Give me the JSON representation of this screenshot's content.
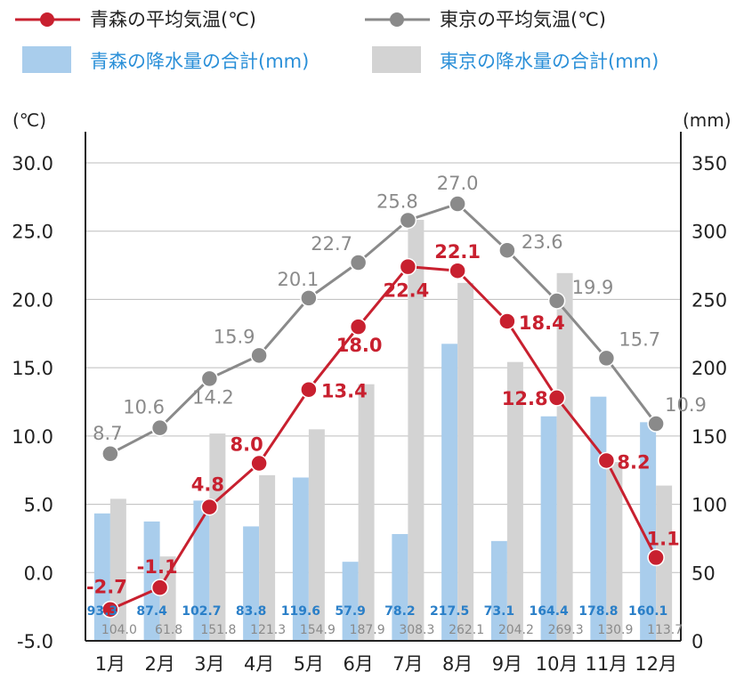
{
  "chart_data": {
    "type": "bar",
    "categories": [
      "1月",
      "2月",
      "3月",
      "4月",
      "5月",
      "6月",
      "7月",
      "8月",
      "9月",
      "10月",
      "11月",
      "12月"
    ],
    "left_axis": {
      "unit_label": "(℃)",
      "ylim": [
        -5.0,
        30.0
      ],
      "ticks": [
        "30.0",
        "25.0",
        "20.0",
        "15.0",
        "10.0",
        "5.0",
        "0.0",
        "-5.0"
      ]
    },
    "right_axis": {
      "unit_label": "(mm)",
      "ylim": [
        0,
        350
      ],
      "ticks": [
        "350",
        "300",
        "250",
        "200",
        "150",
        "100",
        "50",
        "0"
      ]
    },
    "legend": {
      "aomori_temp": "青森の平均気温(℃)",
      "tokyo_temp": "東京の平均気温(℃)",
      "aomori_rain": "青森の降水量の合計(mm)",
      "tokyo_rain": "東京の降水量の合計(mm)"
    },
    "series": [
      {
        "name": "青森の平均気温(℃)",
        "kind": "line",
        "axis": "left",
        "color": "#c8202f",
        "values": [
          -2.7,
          -1.1,
          4.8,
          8.0,
          13.4,
          18.0,
          22.4,
          22.1,
          18.4,
          12.8,
          8.2,
          1.1
        ]
      },
      {
        "name": "東京の平均気温(℃)",
        "kind": "line",
        "axis": "left",
        "color": "#8a8a8a",
        "values": [
          8.7,
          10.6,
          14.2,
          15.9,
          20.1,
          22.7,
          25.8,
          27.0,
          23.6,
          19.9,
          15.7,
          10.9
        ]
      },
      {
        "name": "青森の降水量の合計(mm)",
        "kind": "bar",
        "axis": "right",
        "color": "#a9cdec",
        "values": [
          93.3,
          87.4,
          102.7,
          83.8,
          119.6,
          57.9,
          78.2,
          217.5,
          73.1,
          164.4,
          178.8,
          160.1
        ]
      },
      {
        "name": "東京の降水量の合計(mm)",
        "kind": "bar",
        "axis": "right",
        "color": "#d3d3d3",
        "values": [
          104.0,
          61.8,
          151.8,
          121.3,
          154.9,
          187.9,
          308.3,
          262.1,
          204.2,
          269.3,
          130.9,
          113.7
        ]
      }
    ],
    "grid": true
  },
  "colors": {
    "aomori_line": "#c8202f",
    "tokyo_line": "#8a8a8a",
    "aomori_bar": "#a9cdec",
    "tokyo_bar": "#d3d3d3",
    "aomori_bar_label": "#2a7fc8",
    "tokyo_bar_label": "#8a8a8a",
    "rain_legend_text": "#2a8fd8"
  }
}
